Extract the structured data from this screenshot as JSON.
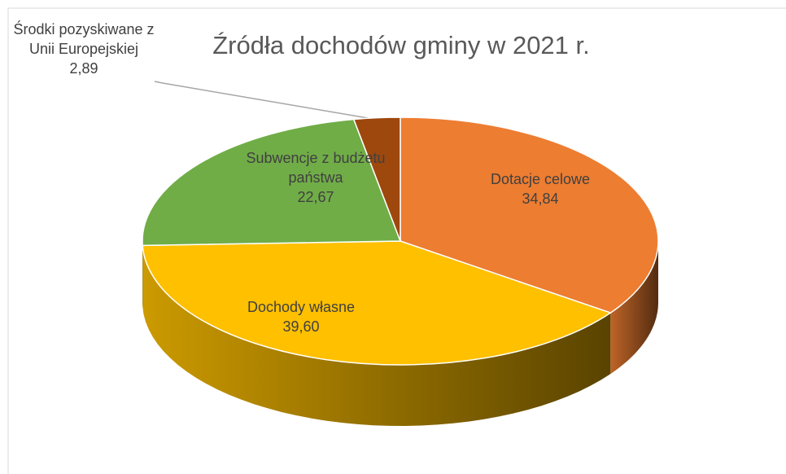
{
  "chart_data": {
    "type": "pie",
    "title": "Źródła dochodów gminy w 2021 r.",
    "categories": [
      "Dotacje celowe",
      "Dochody własne",
      "Subwencje z budżetu państwa",
      "Środki pozyskiwane z Unii Europejskiej"
    ],
    "values": [
      34.84,
      39.6,
      22.67,
      2.89
    ],
    "value_labels": [
      "34,84",
      "39,60",
      "22,67",
      "2,89"
    ],
    "colors": [
      "#ED7D31",
      "#FFC000",
      "#70AD47",
      "#9E480E"
    ]
  }
}
